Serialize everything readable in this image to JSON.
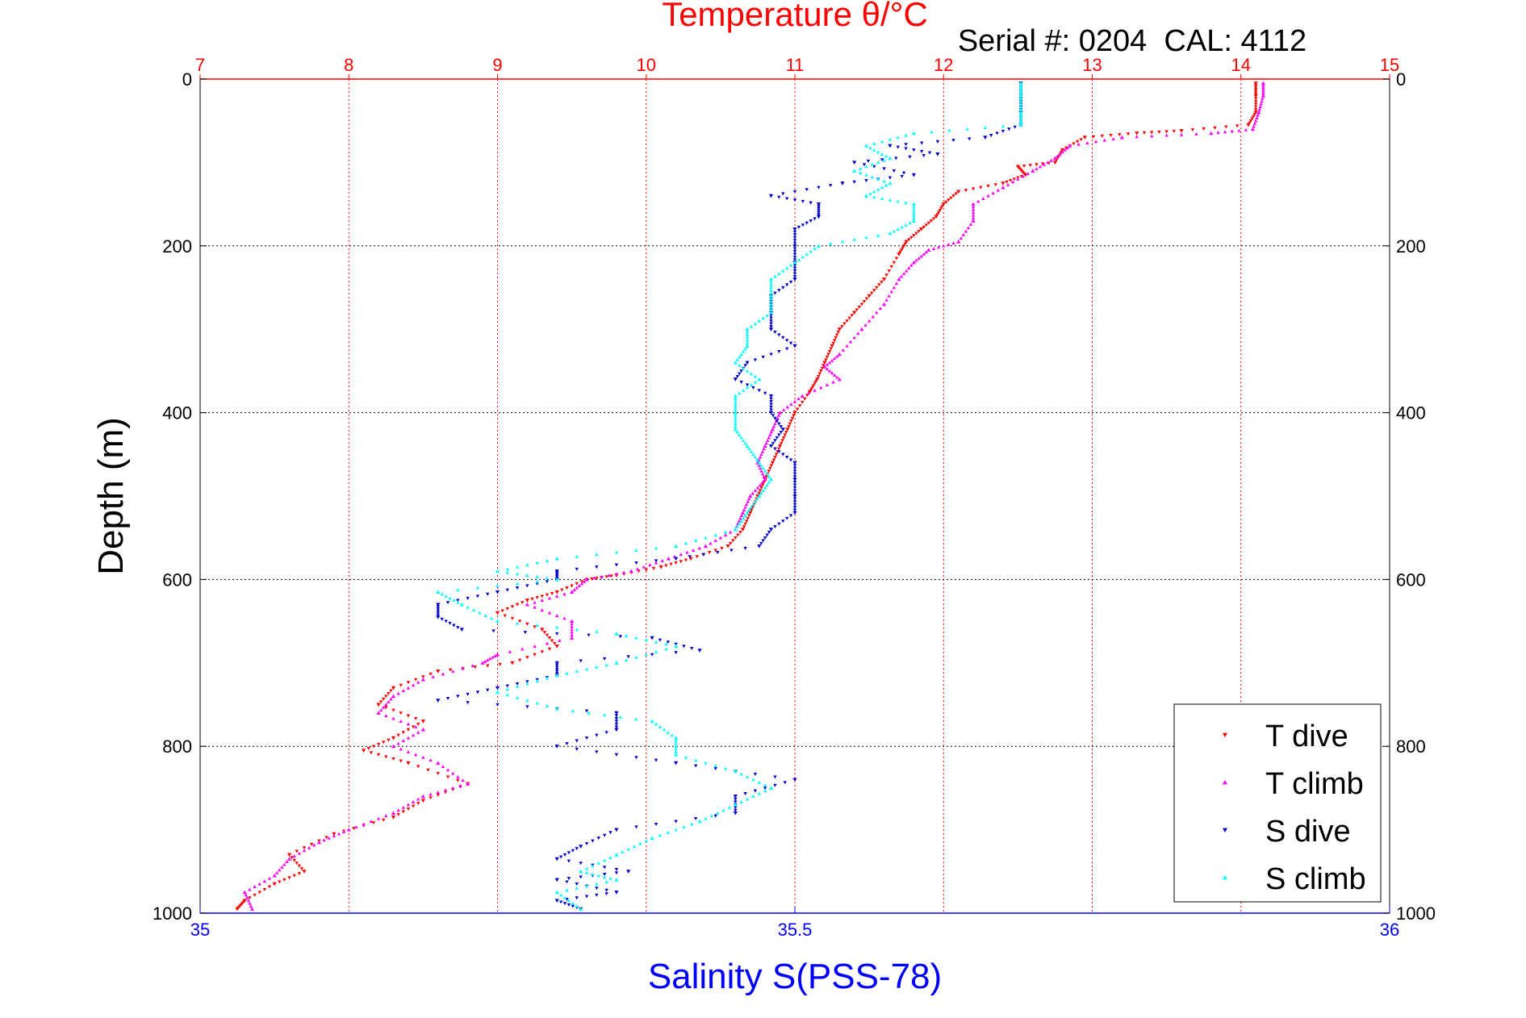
{
  "chart_data": {
    "type": "scatter",
    "title": "Temperature θ/°C",
    "annotation": "Serial #: 0204  CAL: 4112",
    "ylabel": "Depth (m)",
    "xlabel": "Salinity S(PSS-78)",
    "colors": {
      "temp_axis": "#ff0000",
      "sal_axis": "#0000ff",
      "t_dive": "#ff0000",
      "t_climb": "#ff00ff",
      "s_dive": "#0000cc",
      "s_climb": "#00ffff"
    },
    "y_axis": {
      "range": [
        0,
        1000
      ],
      "reversed": true,
      "ticks": [
        "0",
        "200",
        "400",
        "600",
        "800",
        "1000"
      ]
    },
    "temp_axis": {
      "position": "top",
      "range": [
        7,
        15
      ],
      "ticks": [
        "7",
        "8",
        "9",
        "10",
        "11",
        "12",
        "13",
        "14",
        "15"
      ],
      "grid": true
    },
    "sal_axis": {
      "position": "bottom",
      "range": [
        35,
        36
      ],
      "ticks": [
        "35",
        "35.5",
        "36"
      ]
    },
    "legend": {
      "placement": "bottom-right",
      "entries": [
        "T dive",
        "T climb",
        "S dive",
        "S climb"
      ]
    },
    "series": [
      {
        "name": "T dive",
        "axis": "temp",
        "marker": "triangle-down",
        "points": [
          [
            14.1,
            5
          ],
          [
            14.1,
            20
          ],
          [
            14.1,
            40
          ],
          [
            14.05,
            55
          ],
          [
            13.6,
            62
          ],
          [
            13.3,
            65
          ],
          [
            12.95,
            70
          ],
          [
            12.8,
            85
          ],
          [
            12.75,
            100
          ],
          [
            12.5,
            105
          ],
          [
            12.55,
            115
          ],
          [
            12.4,
            125
          ],
          [
            12.1,
            135
          ],
          [
            12.0,
            150
          ],
          [
            11.95,
            165
          ],
          [
            11.85,
            180
          ],
          [
            11.75,
            195
          ],
          [
            11.7,
            210
          ],
          [
            11.6,
            240
          ],
          [
            11.5,
            260
          ],
          [
            11.4,
            280
          ],
          [
            11.3,
            300
          ],
          [
            11.25,
            320
          ],
          [
            11.2,
            340
          ],
          [
            11.15,
            360
          ],
          [
            11.1,
            375
          ],
          [
            11.0,
            400
          ],
          [
            10.95,
            420
          ],
          [
            10.9,
            440
          ],
          [
            10.85,
            460
          ],
          [
            10.8,
            480
          ],
          [
            10.75,
            500
          ],
          [
            10.7,
            520
          ],
          [
            10.65,
            540
          ],
          [
            10.55,
            560
          ],
          [
            10.3,
            575
          ],
          [
            10.1,
            585
          ],
          [
            9.8,
            595
          ],
          [
            9.6,
            600
          ],
          [
            9.4,
            615
          ],
          [
            9.2,
            625
          ],
          [
            9.0,
            640
          ],
          [
            9.3,
            660
          ],
          [
            9.4,
            680
          ],
          [
            9.1,
            700
          ],
          [
            8.6,
            710
          ],
          [
            8.3,
            730
          ],
          [
            8.2,
            750
          ],
          [
            8.5,
            770
          ],
          [
            8.3,
            790
          ],
          [
            8.1,
            805
          ],
          [
            8.4,
            820
          ],
          [
            8.8,
            845
          ],
          [
            8.5,
            865
          ],
          [
            8.3,
            885
          ],
          [
            7.9,
            905
          ],
          [
            7.6,
            930
          ],
          [
            7.7,
            950
          ],
          [
            7.5,
            965
          ],
          [
            7.3,
            985
          ],
          [
            7.25,
            995
          ]
        ]
      },
      {
        "name": "T climb",
        "axis": "temp",
        "marker": "triangle-up",
        "points": [
          [
            14.15,
            5
          ],
          [
            14.15,
            20
          ],
          [
            14.12,
            40
          ],
          [
            14.08,
            60
          ],
          [
            13.8,
            65
          ],
          [
            13.2,
            70
          ],
          [
            12.85,
            80
          ],
          [
            12.75,
            95
          ],
          [
            12.6,
            110
          ],
          [
            12.4,
            130
          ],
          [
            12.2,
            150
          ],
          [
            12.2,
            170
          ],
          [
            12.1,
            195
          ],
          [
            11.9,
            205
          ],
          [
            11.8,
            220
          ],
          [
            11.7,
            240
          ],
          [
            11.6,
            270
          ],
          [
            11.45,
            300
          ],
          [
            11.3,
            330
          ],
          [
            11.2,
            345
          ],
          [
            11.3,
            360
          ],
          [
            11.05,
            380
          ],
          [
            10.9,
            400
          ],
          [
            10.85,
            420
          ],
          [
            10.8,
            440
          ],
          [
            10.75,
            460
          ],
          [
            10.8,
            480
          ],
          [
            10.7,
            500
          ],
          [
            10.65,
            520
          ],
          [
            10.6,
            540
          ],
          [
            10.4,
            560
          ],
          [
            10.15,
            575
          ],
          [
            9.9,
            590
          ],
          [
            9.6,
            600
          ],
          [
            9.5,
            615
          ],
          [
            9.2,
            630
          ],
          [
            9.5,
            650
          ],
          [
            9.5,
            670
          ],
          [
            9.0,
            690
          ],
          [
            8.9,
            700
          ],
          [
            8.5,
            720
          ],
          [
            8.3,
            740
          ],
          [
            8.2,
            760
          ],
          [
            8.5,
            780
          ],
          [
            8.3,
            800
          ],
          [
            8.6,
            820
          ],
          [
            8.8,
            845
          ],
          [
            8.5,
            860
          ],
          [
            8.3,
            880
          ],
          [
            8.0,
            900
          ],
          [
            7.8,
            915
          ],
          [
            7.6,
            935
          ],
          [
            7.5,
            955
          ],
          [
            7.3,
            975
          ],
          [
            7.35,
            995
          ]
        ]
      },
      {
        "name": "S dive",
        "axis": "sal",
        "marker": "triangle-down",
        "points": [
          [
            35.69,
            5
          ],
          [
            35.69,
            20
          ],
          [
            35.69,
            40
          ],
          [
            35.69,
            55
          ],
          [
            35.66,
            70
          ],
          [
            35.58,
            80
          ],
          [
            35.62,
            90
          ],
          [
            35.55,
            100
          ],
          [
            35.6,
            115
          ],
          [
            35.54,
            125
          ],
          [
            35.48,
            140
          ],
          [
            35.52,
            150
          ],
          [
            35.52,
            165
          ],
          [
            35.5,
            180
          ],
          [
            35.5,
            200
          ],
          [
            35.5,
            220
          ],
          [
            35.5,
            240
          ],
          [
            35.48,
            260
          ],
          [
            35.48,
            280
          ],
          [
            35.48,
            300
          ],
          [
            35.5,
            320
          ],
          [
            35.46,
            340
          ],
          [
            35.45,
            360
          ],
          [
            35.48,
            380
          ],
          [
            35.48,
            400
          ],
          [
            35.49,
            420
          ],
          [
            35.48,
            440
          ],
          [
            35.5,
            460
          ],
          [
            35.5,
            480
          ],
          [
            35.5,
            500
          ],
          [
            35.5,
            520
          ],
          [
            35.48,
            540
          ],
          [
            35.47,
            560
          ],
          [
            35.4,
            575
          ],
          [
            35.3,
            590
          ],
          [
            35.3,
            600
          ],
          [
            35.25,
            615
          ],
          [
            35.2,
            630
          ],
          [
            35.2,
            645
          ],
          [
            35.22,
            660
          ],
          [
            35.38,
            670
          ],
          [
            35.42,
            685
          ],
          [
            35.3,
            700
          ],
          [
            35.3,
            715
          ],
          [
            35.25,
            730
          ],
          [
            35.2,
            745
          ],
          [
            35.35,
            760
          ],
          [
            35.35,
            780
          ],
          [
            35.3,
            800
          ],
          [
            35.4,
            820
          ],
          [
            35.5,
            840
          ],
          [
            35.45,
            860
          ],
          [
            35.45,
            880
          ],
          [
            35.35,
            900
          ],
          [
            35.32,
            920
          ],
          [
            35.3,
            935
          ],
          [
            35.36,
            950
          ],
          [
            35.3,
            960
          ],
          [
            35.35,
            975
          ],
          [
            35.3,
            985
          ],
          [
            35.32,
            995
          ]
        ]
      },
      {
        "name": "S climb",
        "axis": "sal",
        "marker": "triangle-up",
        "points": [
          [
            35.69,
            5
          ],
          [
            35.69,
            20
          ],
          [
            35.69,
            40
          ],
          [
            35.69,
            55
          ],
          [
            35.6,
            65
          ],
          [
            35.56,
            80
          ],
          [
            35.58,
            95
          ],
          [
            35.55,
            110
          ],
          [
            35.58,
            125
          ],
          [
            35.56,
            140
          ],
          [
            35.6,
            150
          ],
          [
            35.6,
            170
          ],
          [
            35.58,
            185
          ],
          [
            35.52,
            200
          ],
          [
            35.5,
            220
          ],
          [
            35.48,
            240
          ],
          [
            35.48,
            260
          ],
          [
            35.48,
            280
          ],
          [
            35.46,
            300
          ],
          [
            35.46,
            320
          ],
          [
            35.45,
            340
          ],
          [
            35.47,
            360
          ],
          [
            35.45,
            380
          ],
          [
            35.45,
            400
          ],
          [
            35.45,
            420
          ],
          [
            35.46,
            440
          ],
          [
            35.47,
            460
          ],
          [
            35.48,
            480
          ],
          [
            35.47,
            500
          ],
          [
            35.46,
            520
          ],
          [
            35.45,
            540
          ],
          [
            35.4,
            560
          ],
          [
            35.3,
            575
          ],
          [
            35.25,
            590
          ],
          [
            35.3,
            600
          ],
          [
            35.2,
            615
          ],
          [
            35.22,
            630
          ],
          [
            35.25,
            650
          ],
          [
            35.35,
            665
          ],
          [
            35.4,
            680
          ],
          [
            35.35,
            700
          ],
          [
            35.3,
            715
          ],
          [
            35.25,
            735
          ],
          [
            35.3,
            755
          ],
          [
            35.38,
            770
          ],
          [
            35.4,
            790
          ],
          [
            35.4,
            810
          ],
          [
            35.45,
            830
          ],
          [
            35.48,
            850
          ],
          [
            35.45,
            870
          ],
          [
            35.42,
            890
          ],
          [
            35.38,
            910
          ],
          [
            35.35,
            930
          ],
          [
            35.32,
            950
          ],
          [
            35.35,
            960
          ],
          [
            35.3,
            975
          ],
          [
            35.32,
            995
          ]
        ]
      }
    ]
  }
}
